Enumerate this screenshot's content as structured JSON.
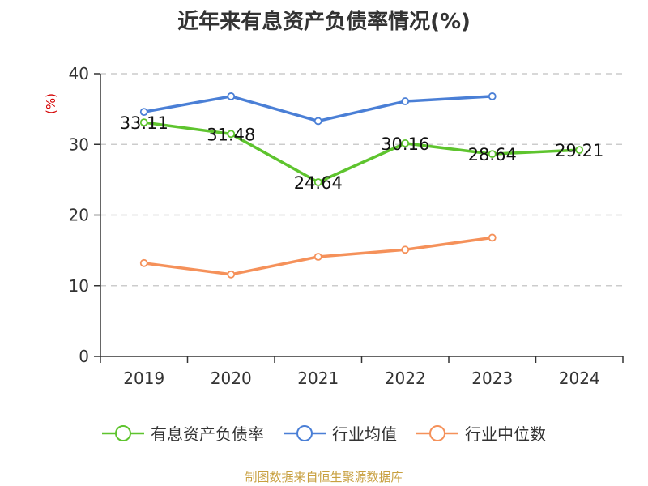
{
  "chart_data": {
    "type": "line",
    "title": "近年来有息资产负债率情况(%)",
    "ylabel": "(%)",
    "categories": [
      "2019",
      "2020",
      "2021",
      "2022",
      "2023",
      "2024"
    ],
    "ylim": [
      0,
      40
    ],
    "yticks": [
      0,
      10,
      20,
      30,
      40
    ],
    "grid": true,
    "legend_position": "bottom",
    "series": [
      {
        "name": "有息资产负债率",
        "color": "#5ec42e",
        "values": [
          33.11,
          31.48,
          24.64,
          30.16,
          28.64,
          29.21
        ],
        "show_labels": true
      },
      {
        "name": "行业均值",
        "color": "#4a7fd6",
        "values": [
          34.6,
          36.8,
          33.3,
          36.1,
          36.8,
          null
        ],
        "show_labels": false
      },
      {
        "name": "行业中位数",
        "color": "#f5915a",
        "values": [
          13.2,
          11.6,
          14.1,
          15.1,
          16.8,
          null
        ],
        "show_labels": false
      }
    ],
    "source": "制图数据来自恒生聚源数据库"
  }
}
